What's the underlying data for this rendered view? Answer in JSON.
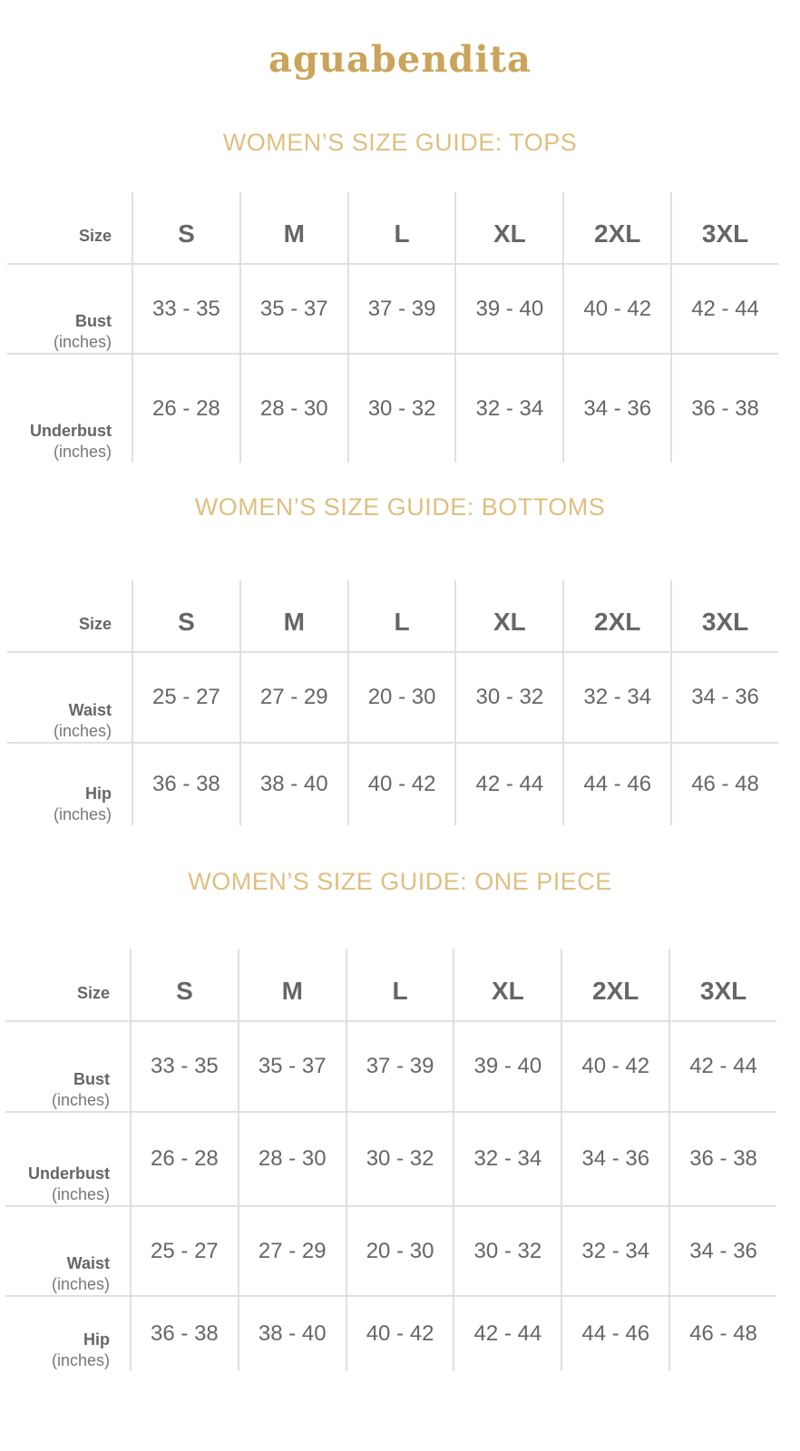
{
  "brand": {
    "logo": "aguabendita",
    "color": "#c9a45a"
  },
  "accent_color": "#dfbf80",
  "sizes": [
    "S",
    "M",
    "L",
    "XL",
    "2XL",
    "3XL"
  ],
  "size_label": "Size",
  "unit_label": "(inches)",
  "tables": [
    {
      "title": "WOMEN’S SIZE GUIDE: TOPS",
      "rows": [
        {
          "label": "Bust",
          "values": [
            "33 - 35",
            "35 - 37",
            "37 - 39",
            "39 - 40",
            "40 - 42",
            "42 - 44"
          ]
        },
        {
          "label": "Underbust",
          "values": [
            "26 - 28",
            "28 - 30",
            "30 - 32",
            "32 - 34",
            "34 - 36",
            "36 - 38"
          ]
        }
      ]
    },
    {
      "title": "WOMEN’S SIZE GUIDE: BOTTOMS",
      "rows": [
        {
          "label": "Waist",
          "values": [
            "25 - 27",
            "27 - 29",
            "20 - 30",
            "30 - 32",
            "32 - 34",
            "34 - 36"
          ]
        },
        {
          "label": "Hip",
          "values": [
            "36 - 38",
            "38 - 40",
            "40 - 42",
            "42 - 44",
            "44 - 46",
            "46 - 48"
          ]
        }
      ]
    },
    {
      "title": "WOMEN’S SIZE GUIDE: ONE PIECE",
      "rows": [
        {
          "label": "Bust",
          "values": [
            "33 - 35",
            "35 - 37",
            "37 - 39",
            "39 - 40",
            "40 - 42",
            "42 - 44"
          ]
        },
        {
          "label": "Underbust",
          "values": [
            "26 - 28",
            "28 - 30",
            "30 - 32",
            "32 - 34",
            "34 - 36",
            "36 - 38"
          ]
        },
        {
          "label": "Waist",
          "values": [
            "25 - 27",
            "27 - 29",
            "20 - 30",
            "30 - 32",
            "32 - 34",
            "34 - 36"
          ]
        },
        {
          "label": "Hip",
          "values": [
            "36 - 38",
            "38 - 40",
            "40 - 42",
            "42 - 44",
            "44 - 46",
            "46 - 48"
          ]
        }
      ]
    }
  ]
}
